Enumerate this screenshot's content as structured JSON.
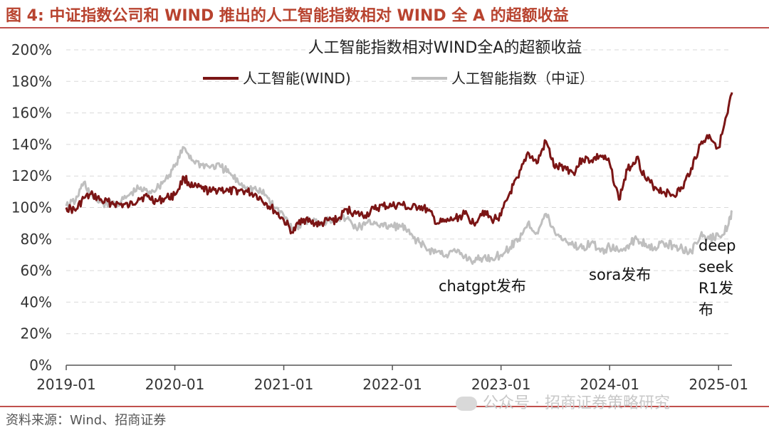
{
  "header": {
    "figure_title": "图 4:  中证指数公司和 WIND 推出的人工智能指数相对 WIND 全 A 的超额收益"
  },
  "footer": {
    "source": "资料来源：Wind、招商证券"
  },
  "watermark": {
    "text": "公众号 · 招商证券策略研究"
  },
  "colors": {
    "accent": "#c0504d",
    "series_wind": "#7b1515",
    "series_csi": "#bfbfbf",
    "title_red": "#b8432f"
  },
  "chart_data": {
    "type": "line",
    "title": "人工智能指数相对WIND全A的超额收益",
    "xlabel": "",
    "ylabel": "",
    "ylim": [
      0,
      200
    ],
    "xlim": [
      "2019-01-01",
      "2025-02-15"
    ],
    "grid": true,
    "legend_position": "top-center",
    "y_ticks": [
      "0%",
      "20%",
      "40%",
      "60%",
      "80%",
      "100%",
      "120%",
      "140%",
      "160%",
      "180%",
      "200%"
    ],
    "x_ticks": [
      "2019-01",
      "2020-01",
      "2021-01",
      "2022-01",
      "2023-01",
      "2024-01",
      "2025-01"
    ],
    "series": [
      {
        "name": "人工智能(WIND)",
        "color": "#7b1515",
        "points": [
          [
            "2019-01-01",
            100
          ],
          [
            "2019-02-01",
            98
          ],
          [
            "2019-03-01",
            106
          ],
          [
            "2019-04-01",
            108
          ],
          [
            "2019-05-01",
            104
          ],
          [
            "2019-06-01",
            103
          ],
          [
            "2019-07-01",
            102
          ],
          [
            "2019-08-01",
            101
          ],
          [
            "2019-09-01",
            106
          ],
          [
            "2019-10-01",
            107
          ],
          [
            "2019-11-01",
            104
          ],
          [
            "2019-12-01",
            106
          ],
          [
            "2020-01-01",
            108
          ],
          [
            "2020-02-01",
            119
          ],
          [
            "2020-03-01",
            113
          ],
          [
            "2020-04-01",
            112
          ],
          [
            "2020-05-01",
            110
          ],
          [
            "2020-06-01",
            112
          ],
          [
            "2020-07-01",
            110
          ],
          [
            "2020-08-01",
            111
          ],
          [
            "2020-09-01",
            110
          ],
          [
            "2020-10-01",
            108
          ],
          [
            "2020-11-01",
            103
          ],
          [
            "2020-12-01",
            98
          ],
          [
            "2021-01-01",
            92
          ],
          [
            "2021-02-01",
            84
          ],
          [
            "2021-03-01",
            93
          ],
          [
            "2021-04-01",
            91
          ],
          [
            "2021-05-01",
            89
          ],
          [
            "2021-06-01",
            92
          ],
          [
            "2021-07-01",
            92
          ],
          [
            "2021-08-01",
            99
          ],
          [
            "2021-09-01",
            96
          ],
          [
            "2021-10-01",
            95
          ],
          [
            "2021-11-01",
            99
          ],
          [
            "2021-12-01",
            101
          ],
          [
            "2022-01-01",
            101
          ],
          [
            "2022-02-01",
            102
          ],
          [
            "2022-03-01",
            99
          ],
          [
            "2022-04-01",
            101
          ],
          [
            "2022-05-01",
            98
          ],
          [
            "2022-06-01",
            90
          ],
          [
            "2022-07-01",
            91
          ],
          [
            "2022-08-01",
            93
          ],
          [
            "2022-09-01",
            96
          ],
          [
            "2022-10-01",
            90
          ],
          [
            "2022-11-01",
            98
          ],
          [
            "2022-12-01",
            92
          ],
          [
            "2023-01-01",
            95
          ],
          [
            "2023-02-01",
            110
          ],
          [
            "2023-03-01",
            119
          ],
          [
            "2023-04-01",
            135
          ],
          [
            "2023-05-01",
            128
          ],
          [
            "2023-06-01",
            142
          ],
          [
            "2023-07-01",
            125
          ],
          [
            "2023-08-01",
            126
          ],
          [
            "2023-09-01",
            122
          ],
          [
            "2023-10-01",
            131
          ],
          [
            "2023-11-01",
            130
          ],
          [
            "2023-12-01",
            133
          ],
          [
            "2024-01-01",
            128
          ],
          [
            "2024-02-01",
            105
          ],
          [
            "2024-03-01",
            124
          ],
          [
            "2024-04-01",
            132
          ],
          [
            "2024-05-01",
            118
          ],
          [
            "2024-06-01",
            113
          ],
          [
            "2024-07-01",
            110
          ],
          [
            "2024-08-01",
            108
          ],
          [
            "2024-09-01",
            112
          ],
          [
            "2024-10-01",
            125
          ],
          [
            "2024-11-01",
            140
          ],
          [
            "2024-12-01",
            146
          ],
          [
            "2025-01-01",
            138
          ],
          [
            "2025-02-01",
            160
          ],
          [
            "2025-02-15",
            173
          ]
        ]
      },
      {
        "name": "人工智能指数（中证）",
        "color": "#bfbfbf",
        "points": [
          [
            "2019-01-01",
            101
          ],
          [
            "2019-02-01",
            104
          ],
          [
            "2019-03-01",
            116
          ],
          [
            "2019-04-01",
            106
          ],
          [
            "2019-05-01",
            103
          ],
          [
            "2019-06-01",
            102
          ],
          [
            "2019-07-01",
            103
          ],
          [
            "2019-08-01",
            108
          ],
          [
            "2019-09-01",
            112
          ],
          [
            "2019-10-01",
            110
          ],
          [
            "2019-11-01",
            112
          ],
          [
            "2019-12-01",
            118
          ],
          [
            "2020-01-01",
            126
          ],
          [
            "2020-02-01",
            138
          ],
          [
            "2020-03-01",
            130
          ],
          [
            "2020-04-01",
            127
          ],
          [
            "2020-05-01",
            126
          ],
          [
            "2020-06-01",
            126
          ],
          [
            "2020-07-01",
            122
          ],
          [
            "2020-08-01",
            116
          ],
          [
            "2020-09-01",
            113
          ],
          [
            "2020-10-01",
            111
          ],
          [
            "2020-11-01",
            108
          ],
          [
            "2020-12-01",
            100
          ],
          [
            "2021-01-01",
            95
          ],
          [
            "2021-02-01",
            87
          ],
          [
            "2021-03-01",
            90
          ],
          [
            "2021-04-01",
            92
          ],
          [
            "2021-05-01",
            90
          ],
          [
            "2021-06-01",
            92
          ],
          [
            "2021-07-01",
            93
          ],
          [
            "2021-08-01",
            93
          ],
          [
            "2021-09-01",
            87
          ],
          [
            "2021-10-01",
            89
          ],
          [
            "2021-11-01",
            91
          ],
          [
            "2021-12-01",
            88
          ],
          [
            "2022-01-01",
            88
          ],
          [
            "2022-02-01",
            88
          ],
          [
            "2022-03-01",
            83
          ],
          [
            "2022-04-01",
            78
          ],
          [
            "2022-05-01",
            73
          ],
          [
            "2022-06-01",
            72
          ],
          [
            "2022-07-01",
            70
          ],
          [
            "2022-08-01",
            72
          ],
          [
            "2022-09-01",
            69
          ],
          [
            "2022-10-01",
            66
          ],
          [
            "2022-11-01",
            68
          ],
          [
            "2022-12-01",
            68
          ],
          [
            "2023-01-01",
            70
          ],
          [
            "2023-02-01",
            75
          ],
          [
            "2023-03-01",
            80
          ],
          [
            "2023-04-01",
            90
          ],
          [
            "2023-05-01",
            84
          ],
          [
            "2023-06-01",
            96
          ],
          [
            "2023-07-01",
            84
          ],
          [
            "2023-08-01",
            80
          ],
          [
            "2023-09-01",
            76
          ],
          [
            "2023-10-01",
            74
          ],
          [
            "2023-11-01",
            78
          ],
          [
            "2023-12-01",
            72
          ],
          [
            "2024-01-01",
            75
          ],
          [
            "2024-02-01",
            72
          ],
          [
            "2024-03-01",
            76
          ],
          [
            "2024-04-01",
            80
          ],
          [
            "2024-05-01",
            77
          ],
          [
            "2024-06-01",
            75
          ],
          [
            "2024-07-01",
            77
          ],
          [
            "2024-08-01",
            76
          ],
          [
            "2024-09-01",
            74
          ],
          [
            "2024-10-01",
            72
          ],
          [
            "2024-11-01",
            82
          ],
          [
            "2024-12-01",
            80
          ],
          [
            "2025-01-01",
            82
          ],
          [
            "2025-02-01",
            88
          ],
          [
            "2025-02-15",
            97
          ]
        ]
      }
    ],
    "annotations": [
      {
        "lines": [
          "chatgpt发布"
        ],
        "date": "2022-11-30"
      },
      {
        "lines": [
          "sora发布"
        ],
        "date": "2024-02-15"
      },
      {
        "lines": [
          "deep",
          "seek",
          "R1发",
          "布"
        ],
        "date": "2025-01-20"
      }
    ]
  }
}
